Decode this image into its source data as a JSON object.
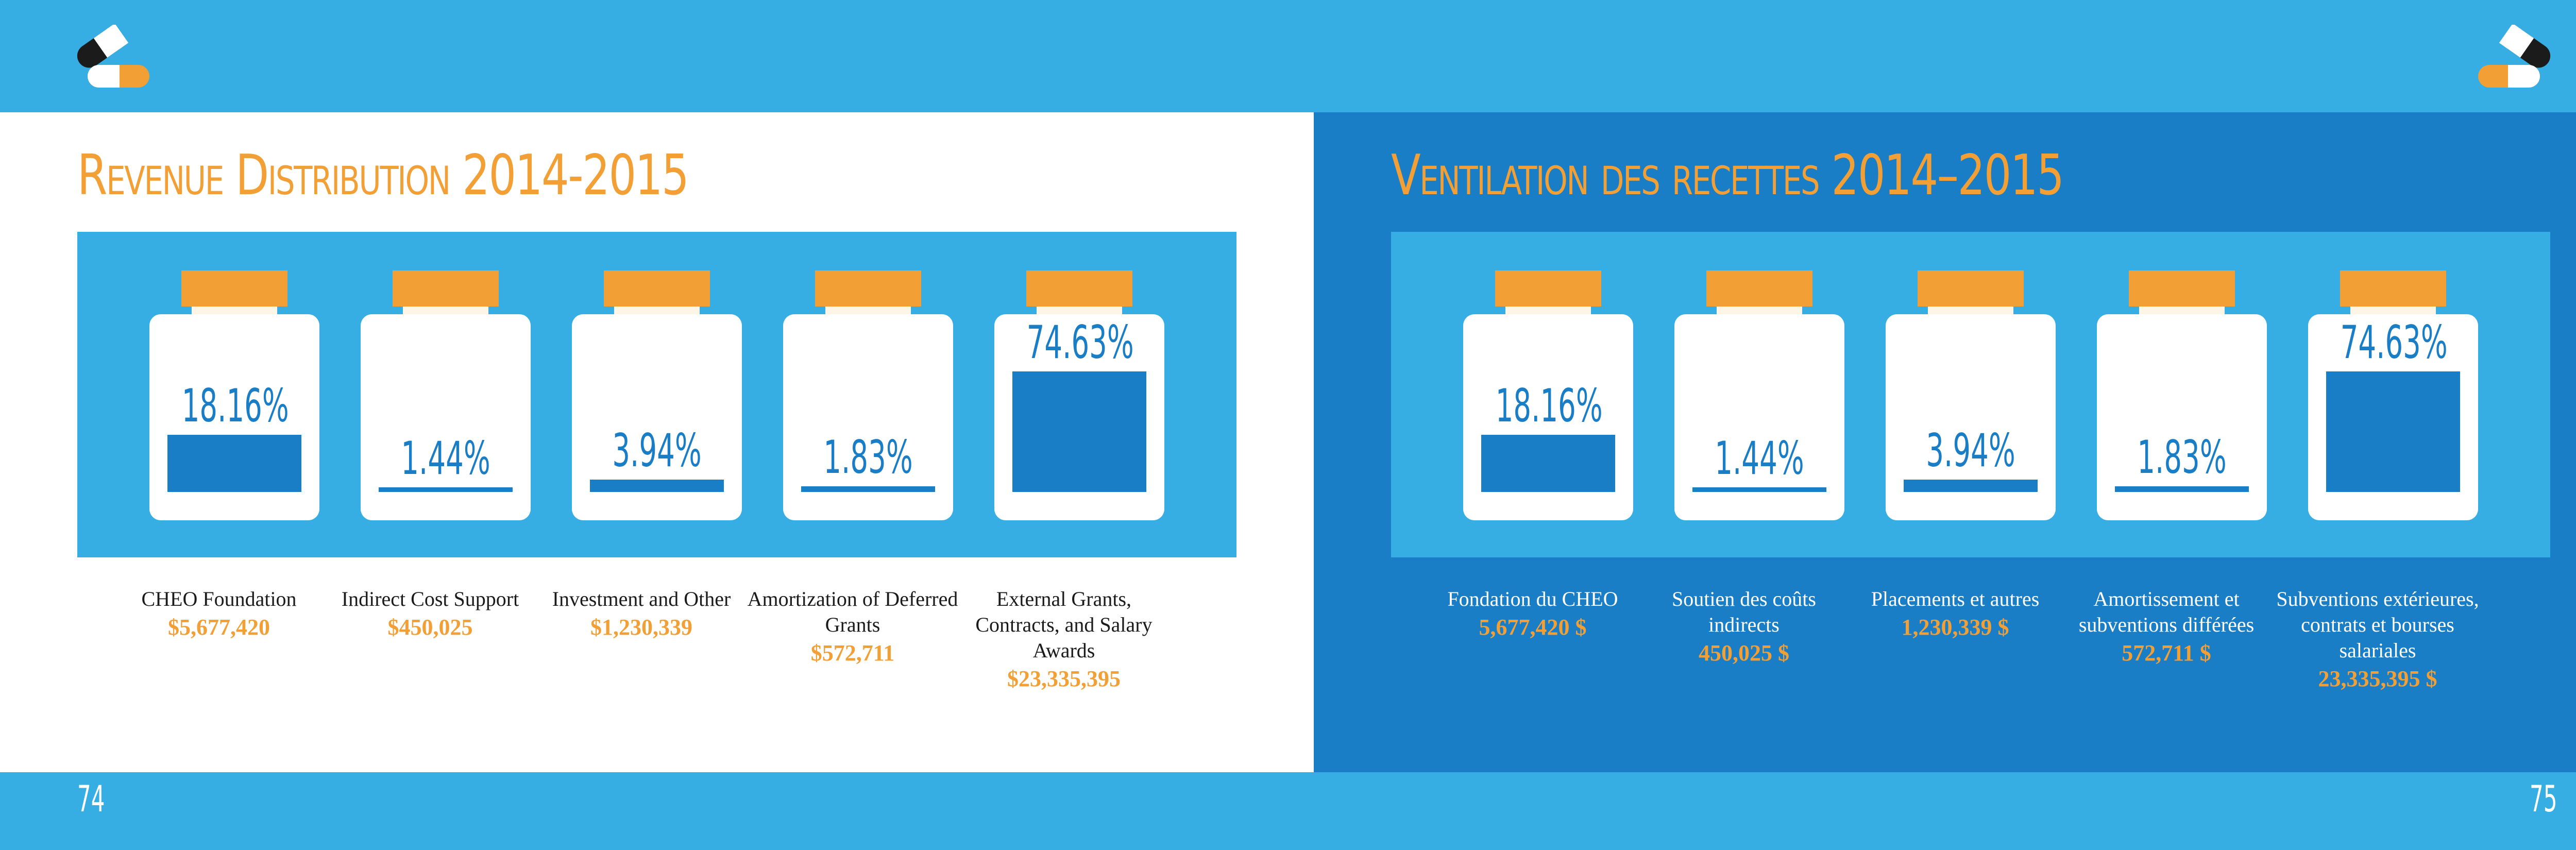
{
  "colors": {
    "accent": "#f29f36",
    "fill": "#1a7ec6",
    "panel": "#36aee3",
    "jar": "#ffffff",
    "right_page": "#1a7ec6"
  },
  "icons": {
    "logo": "pill-capsule-icon"
  },
  "chart_data": [
    {
      "type": "bar",
      "title": "Revenue Distribution 2014-2015",
      "categories": [
        "CHEO Foundation",
        "Indirect Cost Support",
        "Investment and Other",
        "Amortization of Deferred Grants",
        "External Grants, Contracts, and Salary Awards"
      ],
      "amounts": [
        "$5,677,420",
        "$450,025",
        "$1,230,339",
        "$572,711",
        "$23,335,395"
      ],
      "value_labels": [
        "18.16%",
        "1.44%",
        "3.94%",
        "1.83%",
        "74.63%"
      ],
      "values": [
        18.16,
        1.44,
        3.94,
        1.83,
        74.63
      ],
      "ylim": [
        0,
        100
      ]
    },
    {
      "type": "bar",
      "title": "Ventilation des recettes 2014–2015",
      "categories": [
        "Fondation du CHEO",
        "Soutien des coûts indirects",
        "Placements et autres",
        "Amortissement et subventions différées",
        "Subventions extérieures, contrats et bourses salariales"
      ],
      "amounts": [
        "5,677,420 $",
        "450,025 $",
        "1,230,339 $",
        "572,711 $",
        "23,335,395 $"
      ],
      "value_labels": [
        "18.16%",
        "1.44%",
        "3.94%",
        "1.83%",
        "74.63%"
      ],
      "values": [
        18.16,
        1.44,
        3.94,
        1.83,
        74.63
      ],
      "ylim": [
        0,
        100
      ]
    }
  ],
  "page_numbers": {
    "left": "74",
    "right": "75"
  }
}
